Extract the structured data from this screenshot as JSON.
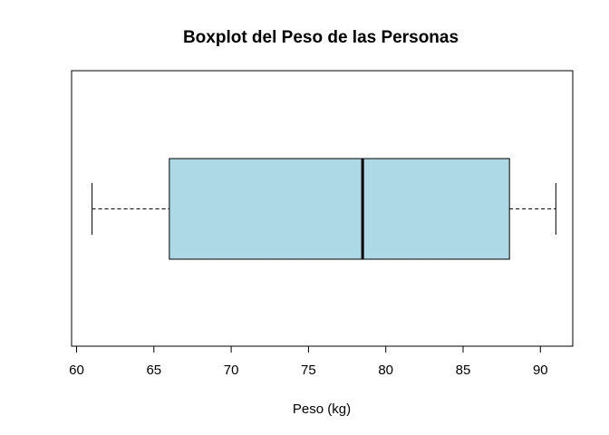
{
  "chart_data": {
    "type": "boxplot",
    "title": "Boxplot del Peso de las Personas",
    "xlabel": "Peso (kg)",
    "ylabel": "",
    "orientation": "horizontal",
    "xlim": [
      60,
      92
    ],
    "xticks": [
      60,
      65,
      70,
      75,
      80,
      85,
      90
    ],
    "box": {
      "min": 61,
      "q1": 66,
      "median": 78.5,
      "q3": 88,
      "max": 91
    },
    "box_color": "#add8e6",
    "grid": false,
    "legend": "none"
  }
}
